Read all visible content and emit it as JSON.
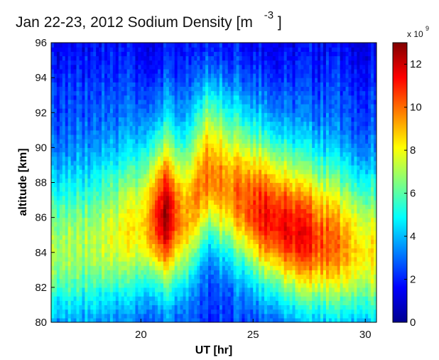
{
  "chart_data": {
    "type": "heatmap",
    "title": "Jan 22-23, 2012 Sodium Density [m",
    "title_exponent": "-3",
    "title_close": "]",
    "xlabel": "UT [hr]",
    "ylabel": "altitude [km]",
    "xlim": [
      16,
      30.5
    ],
    "ylim": [
      80,
      96
    ],
    "x_ticks": [
      20,
      25,
      30
    ],
    "y_ticks": [
      80,
      82,
      84,
      86,
      88,
      90,
      92,
      94,
      96
    ],
    "colorbar": {
      "range": [
        0,
        13
      ],
      "ticks": [
        0,
        2,
        4,
        6,
        8,
        10,
        12
      ],
      "multiplier_prefix": "x 10",
      "multiplier_exponent": "9",
      "colormap": "jet"
    },
    "layer_peak": [
      {
        "time": 16.0,
        "altitude": 84.0,
        "density": 7.0
      },
      {
        "time": 18.0,
        "altitude": 84.5,
        "density": 7.0
      },
      {
        "time": 20.0,
        "altitude": 85.5,
        "density": 8.5
      },
      {
        "time": 21.0,
        "altitude": 86.0,
        "density": 12.5
      },
      {
        "time": 22.0,
        "altitude": 86.0,
        "density": 9.0
      },
      {
        "time": 23.0,
        "altitude": 88.5,
        "density": 10.0
      },
      {
        "time": 24.0,
        "altitude": 87.5,
        "density": 9.5
      },
      {
        "time": 25.5,
        "altitude": 86.0,
        "density": 11.5
      },
      {
        "time": 27.0,
        "altitude": 85.0,
        "density": 11.5
      },
      {
        "time": 28.5,
        "altitude": 84.5,
        "density": 10.0
      },
      {
        "time": 30.0,
        "altitude": 84.0,
        "density": 8.5
      }
    ]
  }
}
